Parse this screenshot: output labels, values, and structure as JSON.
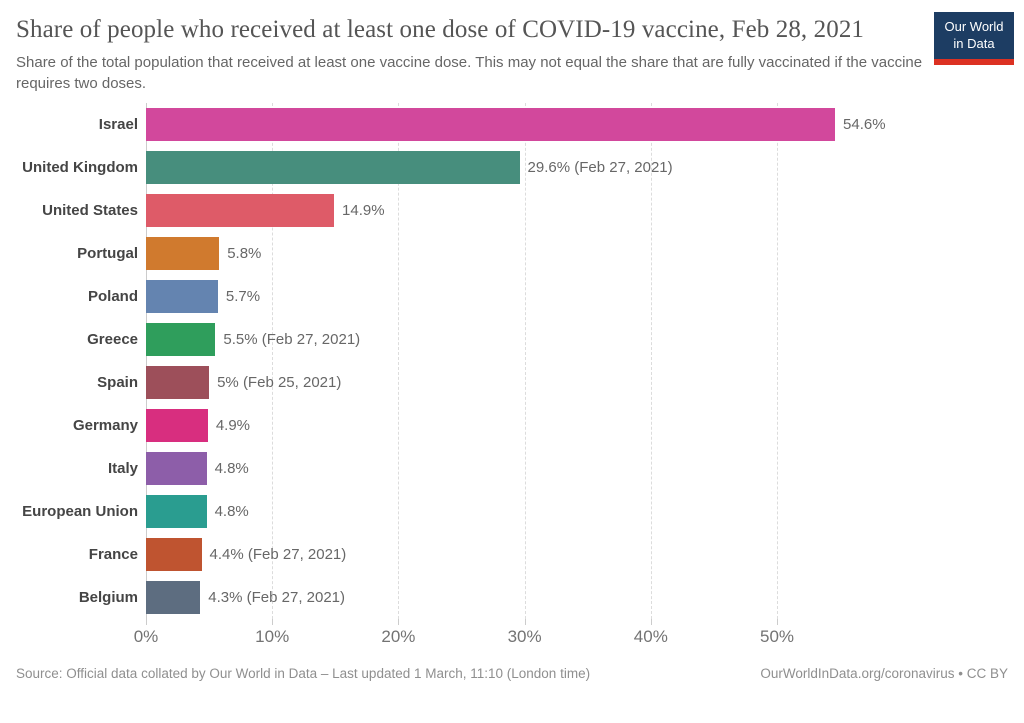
{
  "header": {
    "title": "Share of people who received at least one dose of COVID-19 vaccine, Feb 28, 2021",
    "subtitle": "Share of the total population that received at least one vaccine dose. This may not equal the share that are fully vaccinated if the vaccine requires two doses.",
    "logo": {
      "line1": "Our World",
      "line2": "in Data",
      "bg_color": "#1d3d63",
      "accent_color": "#dc3122"
    }
  },
  "chart_data": {
    "type": "bar",
    "orientation": "horizontal",
    "title": "Share of people who received at least one dose of COVID-19 vaccine, Feb 28, 2021",
    "categories": [
      "Israel",
      "United Kingdom",
      "United States",
      "Portugal",
      "Poland",
      "Greece",
      "Spain",
      "Germany",
      "Italy",
      "European Union",
      "France",
      "Belgium"
    ],
    "values": [
      54.6,
      29.6,
      14.9,
      5.8,
      5.7,
      5.5,
      5,
      4.9,
      4.8,
      4.8,
      4.4,
      4.3
    ],
    "value_labels": [
      "54.6%",
      "29.6% (Feb 27, 2021)",
      "14.9%",
      "5.8%",
      "5.7%",
      "5.5% (Feb 27, 2021)",
      "5% (Feb 25, 2021)",
      "4.9%",
      "4.8%",
      "4.8%",
      "4.4% (Feb 27, 2021)",
      "4.3% (Feb 27, 2021)"
    ],
    "bar_colors": [
      "#d2489c",
      "#478e7d",
      "#de5b68",
      "#d07a2e",
      "#6484b0",
      "#2f9e5c",
      "#9d4f5a",
      "#d82e7f",
      "#8d5ea9",
      "#2a9d90",
      "#bf5430",
      "#5d6d80"
    ],
    "x_ticks": [
      0,
      10,
      20,
      30,
      40,
      50
    ],
    "x_tick_labels": [
      "0%",
      "10%",
      "20%",
      "30%",
      "40%",
      "50%"
    ],
    "xlim": [
      0,
      68.8
    ],
    "xlabel": "",
    "ylabel": "",
    "grid": "vertical-dashed",
    "legend": "none"
  },
  "footer": {
    "source": "Source: Official data collated by Our World in Data – Last updated 1 March, 11:10 (London time)",
    "link": "OurWorldInData.org/coronavirus",
    "license_suffix": " • CC BY"
  }
}
